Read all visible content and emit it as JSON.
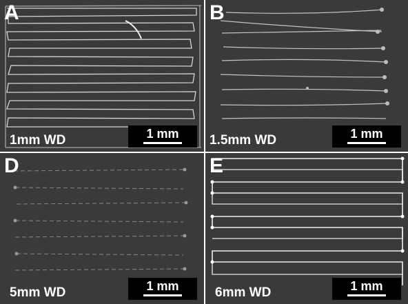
{
  "panels": [
    {
      "letter": "A",
      "wd_label": "1mm WD",
      "scale_label": "1 mm"
    },
    {
      "letter": "B",
      "wd_label": "1.5mm WD",
      "scale_label": "1 mm"
    },
    {
      "letter": "D",
      "wd_label": "5mm WD",
      "scale_label": "1 mm"
    },
    {
      "letter": "E",
      "wd_label": "6mm WD",
      "scale_label": "1 mm"
    }
  ],
  "colors": {
    "background": "#3a3a3c",
    "fiber": "#e8e8e8",
    "label": "#ffffff",
    "scale_box": "#000000"
  }
}
